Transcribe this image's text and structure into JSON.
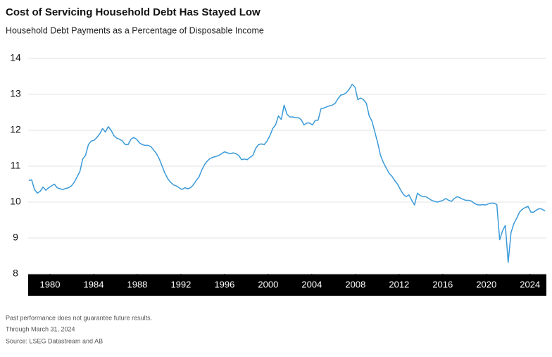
{
  "chart_data": {
    "type": "line",
    "title": "Cost of Servicing Household Debt Has Stayed Low",
    "subtitle": "Household Debt Payments as a Percentage of Disposable Income",
    "notes": [
      "Past performance does not guarantee future results.",
      "Through March 31, 2024",
      "Source: LSEG Datastream and AB"
    ],
    "xlim": [
      1978,
      2025.5
    ],
    "xticks": [
      1980,
      1984,
      1988,
      1992,
      1996,
      2000,
      2004,
      2008,
      2012,
      2016,
      2020,
      2024
    ],
    "ylim": [
      8,
      14
    ],
    "yticks": [
      8,
      9,
      10,
      11,
      12,
      13,
      14
    ],
    "grid": true,
    "color": "#3a9ad9",
    "x": [
      1978.06,
      1978.32,
      1978.58,
      1978.84,
      1979.1,
      1979.36,
      1979.62,
      1979.88,
      1980.14,
      1980.4,
      1980.66,
      1980.92,
      1981.18,
      1981.44,
      1981.7,
      1981.96,
      1982.22,
      1982.48,
      1982.74,
      1983.0,
      1983.26,
      1983.52,
      1983.78,
      1984.04,
      1984.3,
      1984.56,
      1984.82,
      1985.08,
      1985.34,
      1985.6,
      1985.86,
      1986.12,
      1986.38,
      1986.64,
      1986.9,
      1987.16,
      1987.42,
      1987.68,
      1987.94,
      1988.2,
      1988.46,
      1988.72,
      1988.98,
      1989.24,
      1989.5,
      1989.76,
      1990.02,
      1990.28,
      1990.54,
      1990.8,
      1991.06,
      1991.32,
      1991.58,
      1991.84,
      1992.1,
      1992.36,
      1992.62,
      1992.88,
      1993.14,
      1993.4,
      1993.66,
      1993.92,
      1994.18,
      1994.44,
      1994.7,
      1994.96,
      1995.22,
      1995.48,
      1995.74,
      1996.0,
      1996.26,
      1996.52,
      1996.78,
      1997.04,
      1997.3,
      1997.56,
      1997.82,
      1998.08,
      1998.34,
      1998.6,
      1998.86,
      1999.12,
      1999.38,
      1999.64,
      1999.9,
      2000.16,
      2000.42,
      2000.68,
      2000.94,
      2001.2,
      2001.46,
      2001.72,
      2001.98,
      2002.24,
      2002.5,
      2002.76,
      2003.02,
      2003.28,
      2003.54,
      2003.8,
      2004.06,
      2004.32,
      2004.58,
      2004.84,
      2005.1,
      2005.36,
      2005.62,
      2005.88,
      2006.14,
      2006.4,
      2006.66,
      2006.92,
      2007.18,
      2007.44,
      2007.7,
      2007.96,
      2008.22,
      2008.48,
      2008.74,
      2009.0,
      2009.26,
      2009.52,
      2009.78,
      2010.04,
      2010.3,
      2010.56,
      2010.82,
      2011.08,
      2011.34,
      2011.6,
      2011.86,
      2012.12,
      2012.38,
      2012.64,
      2012.9,
      2013.16,
      2013.42,
      2013.68,
      2013.94,
      2014.2,
      2014.46,
      2014.72,
      2014.98,
      2015.24,
      2015.5,
      2015.76,
      2016.02,
      2016.28,
      2016.54,
      2016.8,
      2017.06,
      2017.32,
      2017.58,
      2017.84,
      2018.1,
      2018.36,
      2018.62,
      2018.88,
      2019.14,
      2019.4,
      2019.66,
      2019.92,
      2020.18,
      2020.44,
      2020.7,
      2020.96,
      2021.22,
      2021.48,
      2021.74,
      2022.0,
      2022.26,
      2022.52,
      2022.78,
      2023.04,
      2023.3,
      2023.56,
      2023.82,
      2024.08,
      2024.34,
      2024.6,
      2024.86,
      2025.12,
      2025.38
    ],
    "values": [
      10.6,
      10.62,
      10.35,
      10.25,
      10.3,
      10.42,
      10.33,
      10.4,
      10.45,
      10.5,
      10.4,
      10.37,
      10.35,
      10.38,
      10.4,
      10.45,
      10.55,
      10.7,
      10.85,
      11.2,
      11.3,
      11.6,
      11.7,
      11.72,
      11.8,
      11.9,
      12.05,
      11.95,
      12.1,
      12.0,
      11.85,
      11.78,
      11.75,
      11.7,
      11.6,
      11.6,
      11.75,
      11.8,
      11.75,
      11.65,
      11.6,
      11.58,
      11.58,
      11.55,
      11.45,
      11.35,
      11.2,
      11.0,
      10.8,
      10.65,
      10.55,
      10.48,
      10.45,
      10.4,
      10.35,
      10.4,
      10.37,
      10.4,
      10.48,
      10.6,
      10.7,
      10.9,
      11.05,
      11.15,
      11.22,
      11.25,
      11.27,
      11.3,
      11.35,
      11.4,
      11.37,
      11.35,
      11.37,
      11.35,
      11.3,
      11.18,
      11.2,
      11.18,
      11.25,
      11.3,
      11.5,
      11.6,
      11.62,
      11.6,
      11.7,
      11.85,
      12.05,
      12.15,
      12.4,
      12.3,
      12.7,
      12.45,
      12.37,
      12.37,
      12.35,
      12.35,
      12.3,
      12.15,
      12.2,
      12.2,
      12.15,
      12.28,
      12.28,
      12.6,
      12.62,
      12.65,
      12.68,
      12.7,
      12.75,
      12.88,
      12.98,
      13.0,
      13.05,
      13.15,
      13.28,
      13.2,
      12.85,
      12.9,
      12.85,
      12.75,
      12.4,
      12.25,
      11.95,
      11.65,
      11.3,
      11.1,
      10.95,
      10.8,
      10.72,
      10.6,
      10.5,
      10.35,
      10.22,
      10.15,
      10.2,
      10.05,
      9.92,
      10.25,
      10.18,
      10.15,
      10.15,
      10.1,
      10.05,
      10.02,
      10.0,
      10.02,
      10.05,
      10.1,
      10.05,
      10.02,
      10.1,
      10.15,
      10.12,
      10.08,
      10.05,
      10.05,
      10.03,
      9.97,
      9.93,
      9.92,
      9.93,
      9.92,
      9.95,
      9.97,
      9.97,
      9.93,
      8.95,
      9.2,
      9.35,
      8.32,
      9.15,
      9.4,
      9.55,
      9.72,
      9.8,
      9.85,
      9.88,
      9.72,
      9.72,
      9.78,
      9.82,
      9.8,
      9.75
    ]
  }
}
